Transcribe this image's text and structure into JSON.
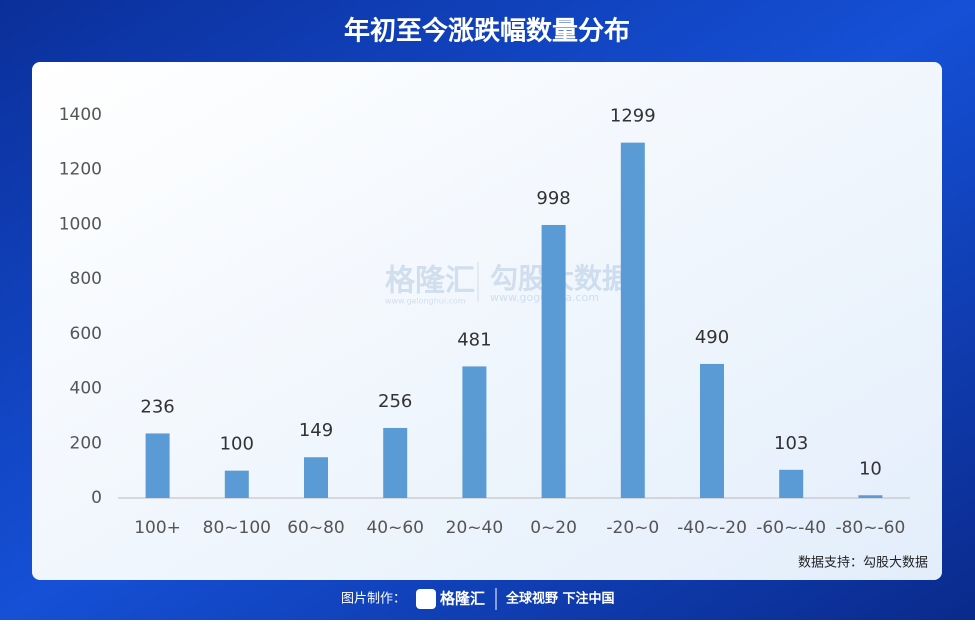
{
  "chart_data": {
    "type": "bar",
    "title": "年初至今涨跌幅数量分布",
    "categories": [
      "100+",
      "80~100",
      "60~80",
      "40~60",
      "20~40",
      "0~20",
      "-20~0",
      "-40~-20",
      "-60~-40",
      "-80~-60"
    ],
    "values": [
      236,
      100,
      149,
      256,
      481,
      998,
      1299,
      490,
      103,
      10
    ],
    "color": "#5b9bd5",
    "ylim": [
      0,
      1400
    ],
    "yticks": [
      0,
      200,
      400,
      600,
      800,
      1000,
      1200,
      1400
    ],
    "grid": false,
    "source": "数据支持：勾股大数据",
    "watermark": {
      "brand": "格隆汇",
      "brand_url": "www.gelonghui.com",
      "partner": "勾股大数据",
      "partner_url": "www.gogudata.com"
    },
    "footer": {
      "made_by": "图片制作：",
      "brand": "格隆汇",
      "slogan": "全球视野 下注中国"
    }
  }
}
